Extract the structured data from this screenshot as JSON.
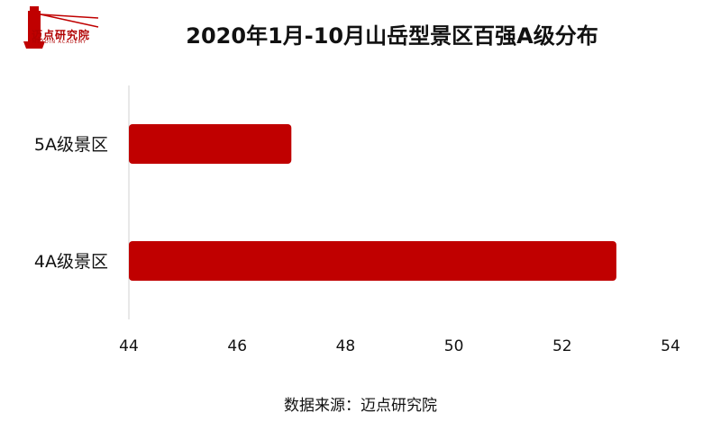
{
  "brand": {
    "name": "迈点研究院",
    "tagline": "MEADIN ACADEMY",
    "color": "#c00000"
  },
  "chart_data": {
    "type": "bar",
    "orientation": "horizontal",
    "title": "2020年1月-10月山岳型景区百强A级分布",
    "categories": [
      "5A级景区",
      "4A级景区"
    ],
    "values": [
      47,
      53
    ],
    "xlim": [
      44,
      54
    ],
    "xticks": [
      44,
      46,
      48,
      50,
      52,
      54
    ],
    "bar_color": "#c00000",
    "grid": false,
    "legend": "none"
  },
  "source": "数据来源：迈点研究院"
}
